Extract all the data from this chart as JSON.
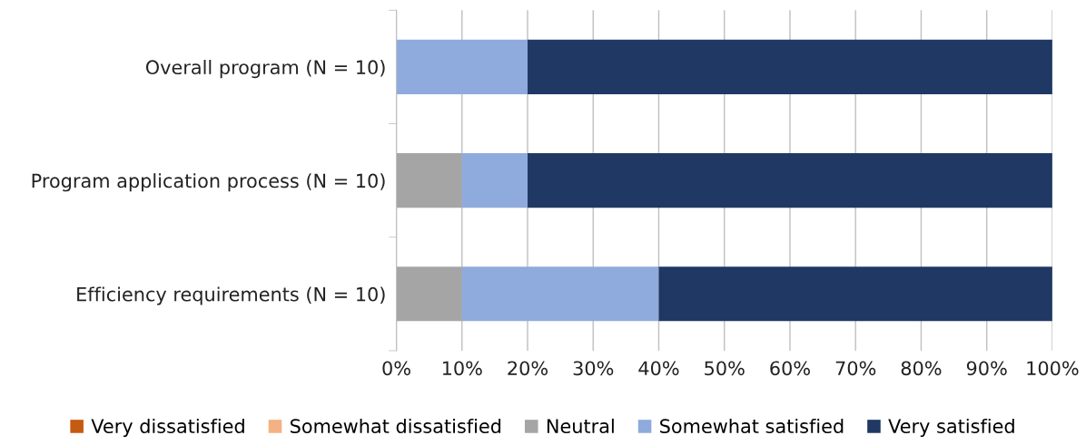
{
  "chart_data": {
    "type": "bar",
    "orientation": "horizontal",
    "stacked": true,
    "categories": [
      "Overall program (N = 10)",
      "Program application process (N = 10)",
      "Efficiency requirements (N = 10)"
    ],
    "series": [
      {
        "name": "Very dissatisfied",
        "color": "#c55a11",
        "values": [
          0,
          0,
          0
        ]
      },
      {
        "name": "Somewhat dissatisfied",
        "color": "#f4b183",
        "values": [
          0,
          0,
          0
        ]
      },
      {
        "name": "Neutral",
        "color": "#a5a5a5",
        "values": [
          0,
          10,
          10
        ]
      },
      {
        "name": "Somewhat satisfied",
        "color": "#8faadc",
        "values": [
          20,
          10,
          30
        ]
      },
      {
        "name": "Very satisfied",
        "color": "#203864",
        "values": [
          80,
          80,
          60
        ]
      }
    ],
    "xlim": [
      0,
      100
    ],
    "xticks": [
      {
        "value": 0,
        "label": "0%"
      },
      {
        "value": 10,
        "label": "10%"
      },
      {
        "value": 20,
        "label": "20%"
      },
      {
        "value": 30,
        "label": "30%"
      },
      {
        "value": 40,
        "label": "40%"
      },
      {
        "value": 50,
        "label": "50%"
      },
      {
        "value": 60,
        "label": "60%"
      },
      {
        "value": 70,
        "label": "70%"
      },
      {
        "value": 80,
        "label": "80%"
      },
      {
        "value": 90,
        "label": "90%"
      },
      {
        "value": 100,
        "label": "100%"
      }
    ],
    "grid": "x",
    "legend": "bottom"
  }
}
